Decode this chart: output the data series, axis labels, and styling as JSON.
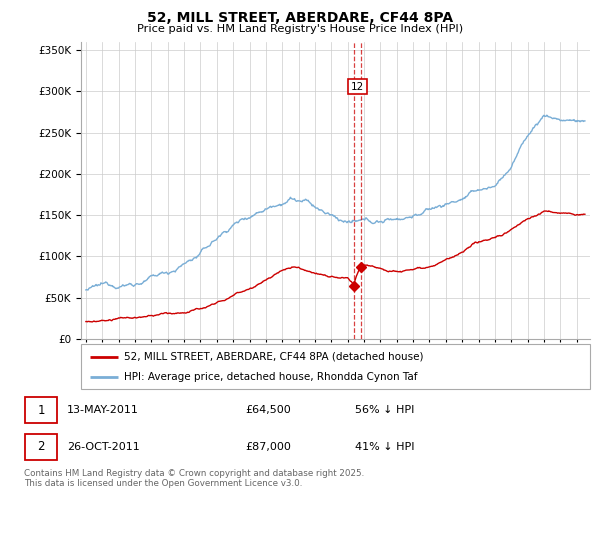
{
  "title": "52, MILL STREET, ABERDARE, CF44 8PA",
  "subtitle": "Price paid vs. HM Land Registry's House Price Index (HPI)",
  "ytick_values": [
    0,
    50000,
    100000,
    150000,
    200000,
    250000,
    300000,
    350000
  ],
  "ylim": [
    0,
    360000
  ],
  "xlim_start": 1994.7,
  "xlim_end": 2025.8,
  "sale1_year": 2011.36,
  "sale1_price": 64500,
  "sale2_year": 2011.82,
  "sale2_price": 87000,
  "sale1_date": "13-MAY-2011",
  "sale2_date": "26-OCT-2011",
  "sale1_pct": "56% ↓ HPI",
  "sale2_pct": "41% ↓ HPI",
  "legend_red": "52, MILL STREET, ABERDARE, CF44 8PA (detached house)",
  "legend_blue": "HPI: Average price, detached house, Rhondda Cynon Taf",
  "footer": "Contains HM Land Registry data © Crown copyright and database right 2025.\nThis data is licensed under the Open Government Licence v3.0.",
  "red_color": "#cc0000",
  "blue_color": "#7aaed6",
  "grid_color": "#cccccc",
  "bg_chart": "#ffffff",
  "label_box_color": "#cc0000"
}
